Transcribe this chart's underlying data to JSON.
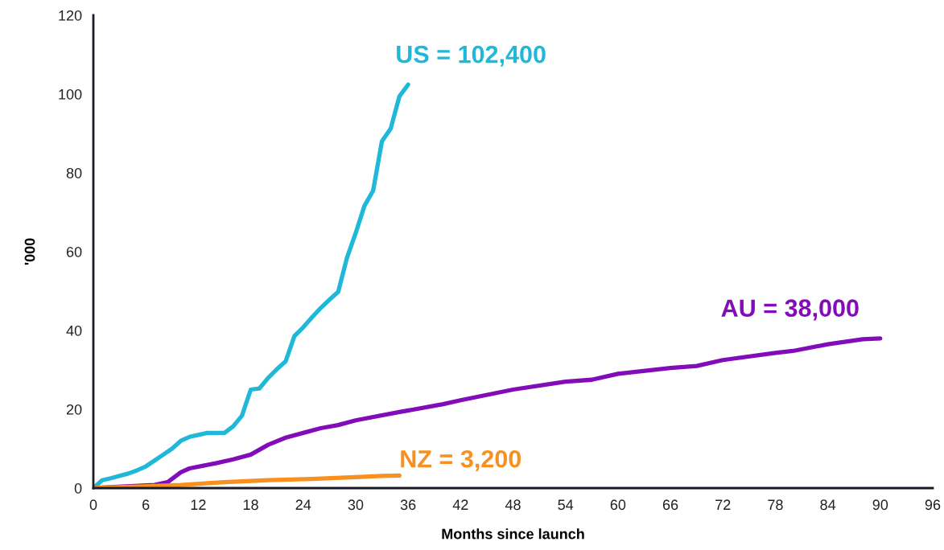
{
  "chart_data": {
    "type": "line",
    "xlabel": "Months since launch",
    "ylabel": "'000",
    "xlim": [
      0,
      96
    ],
    "xticks": [
      0,
      6,
      12,
      18,
      24,
      30,
      36,
      42,
      48,
      54,
      60,
      66,
      72,
      78,
      84,
      90,
      96
    ],
    "ylim": [
      0,
      120
    ],
    "yticks": [
      0,
      20,
      40,
      60,
      80,
      100,
      120
    ],
    "grid": false,
    "legend": false,
    "marker": "none",
    "line_style": "solid",
    "series": [
      {
        "color": "#1fb8d8",
        "x": [
          0,
          1,
          2,
          4,
          5,
          6,
          7,
          8,
          9,
          10,
          11,
          12,
          13,
          14,
          15,
          16,
          17,
          18,
          19,
          20,
          21,
          22,
          23,
          24,
          25,
          26,
          27,
          28,
          29,
          30,
          31,
          32,
          33,
          34,
          35,
          36
        ],
        "values": [
          0,
          2,
          2.5,
          3.7,
          4.5,
          5.5,
          7,
          8.5,
          10,
          12,
          13,
          13.5,
          14,
          14,
          14,
          15.7,
          18.4,
          25,
          25.3,
          28,
          30.2,
          32.2,
          38.6,
          40.8,
          43.3,
          45.7,
          47.8,
          49.8,
          58.4,
          64.7,
          71.6,
          75.5,
          88,
          91.2,
          99.4,
          102.4
        ]
      },
      {
        "color": "#820cba",
        "x": [
          0,
          7,
          8.5,
          10,
          11,
          14,
          16,
          18,
          20,
          22,
          24,
          26,
          28,
          30,
          35,
          40,
          42,
          48,
          54,
          57,
          60,
          66,
          69,
          72,
          78,
          80,
          84,
          88,
          90
        ],
        "values": [
          0,
          0.8,
          1.5,
          4,
          5,
          6.3,
          7.3,
          8.5,
          11,
          12.8,
          14,
          15.2,
          16,
          17.2,
          19.3,
          21.3,
          22.3,
          25,
          27,
          27.5,
          29,
          30.5,
          31,
          32.5,
          34.3,
          34.8,
          36.5,
          37.8,
          38
        ]
      },
      {
        "color": "#f7901e",
        "x": [
          0,
          5,
          10,
          15,
          20,
          25,
          30,
          33,
          35
        ],
        "values": [
          0,
          0.4,
          0.8,
          1.5,
          2,
          2.3,
          2.8,
          3.1,
          3.2
        ]
      }
    ],
    "annotations": [
      {
        "text": "US = 102,400",
        "x": 36,
        "y": 102.4
      },
      {
        "text": "AU = 38,000",
        "x": 90,
        "y": 38
      },
      {
        "text": "NZ = 3,200",
        "x": 35,
        "y": 3.2
      }
    ]
  }
}
